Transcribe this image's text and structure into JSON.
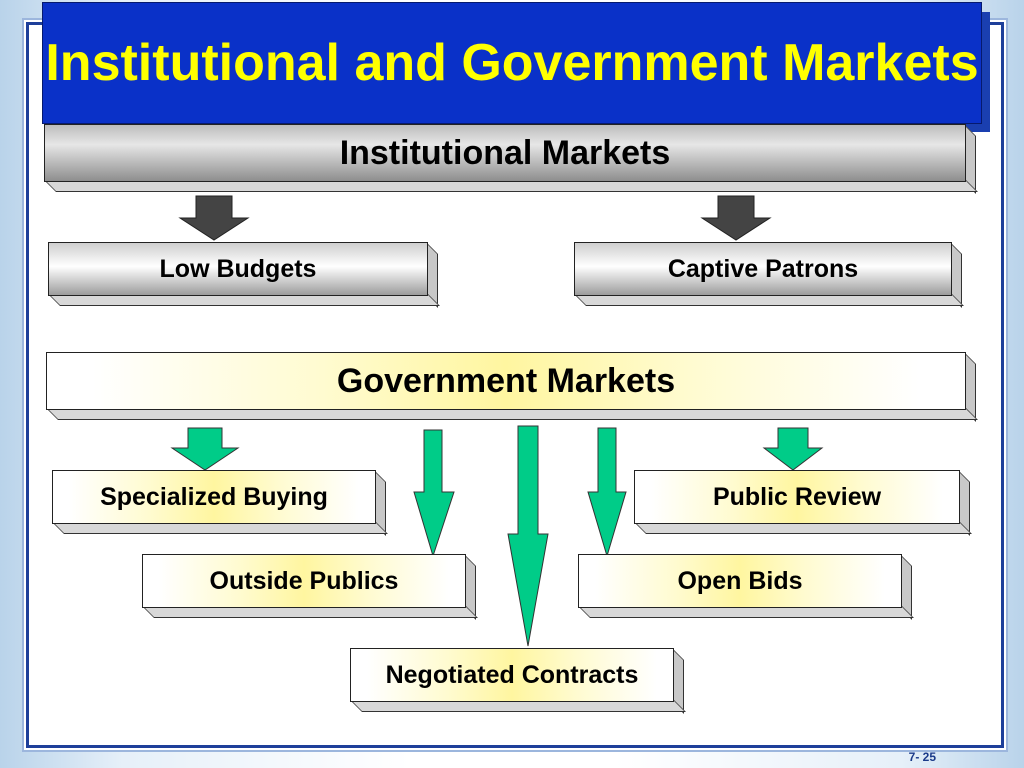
{
  "slide": {
    "title": "Institutional and Government Markets",
    "page_number": "7- 25"
  },
  "diagram": {
    "institutional": {
      "heading": "Institutional Markets",
      "items": [
        "Low Budgets",
        "Captive Patrons"
      ]
    },
    "government": {
      "heading": "Government Markets",
      "items": [
        "Specialized Buying",
        "Public Review",
        "Outside Publics",
        "Open Bids",
        "Negotiated Contracts"
      ]
    }
  },
  "colors": {
    "title_bg": "#0a31c8",
    "title_text": "#ffff00",
    "frame_border": "#1e3f9a",
    "gray_arrow": "#444444",
    "green_arrow": "#00cc88"
  }
}
